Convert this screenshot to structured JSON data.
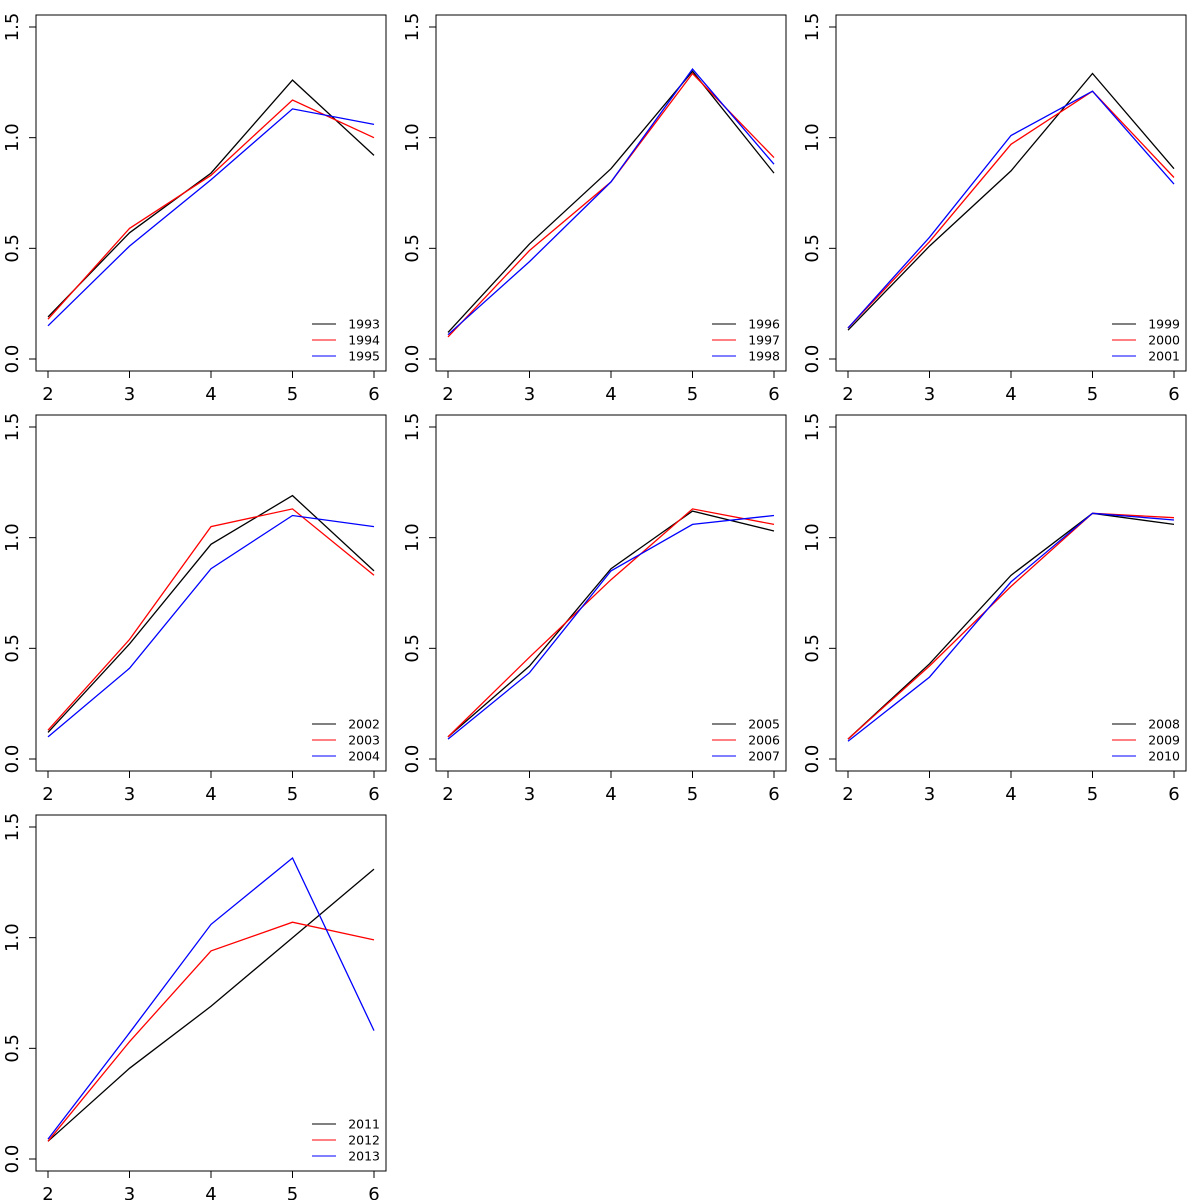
{
  "figure": {
    "layout": "3x3 grid of line charts",
    "background": "#ffffff"
  },
  "colors": {
    "axis": "#000000",
    "series": [
      "#000000",
      "#ff0000",
      "#0000ff"
    ]
  },
  "chart_data": [
    {
      "type": "line",
      "title": "",
      "xlabel": "",
      "ylabel": "",
      "xlim": [
        2,
        6
      ],
      "ylim": [
        0,
        1.5
      ],
      "x_ticks": [
        "2",
        "3",
        "4",
        "5",
        "6"
      ],
      "y_ticks": [
        "0.0",
        "0.5",
        "1.0",
        "1.5"
      ],
      "x": [
        2,
        3,
        4,
        5,
        6
      ],
      "grid": false,
      "legend_position": "bottom-right",
      "series": [
        {
          "name": "1993",
          "color": "#000000",
          "values": [
            0.19,
            0.57,
            0.84,
            1.26,
            0.92
          ]
        },
        {
          "name": "1994",
          "color": "#ff0000",
          "values": [
            0.18,
            0.59,
            0.83,
            1.17,
            1.0
          ]
        },
        {
          "name": "1995",
          "color": "#0000ff",
          "values": [
            0.15,
            0.51,
            0.81,
            1.13,
            1.06
          ]
        }
      ]
    },
    {
      "type": "line",
      "title": "",
      "xlabel": "",
      "ylabel": "",
      "xlim": [
        2,
        6
      ],
      "ylim": [
        0,
        1.5
      ],
      "x_ticks": [
        "2",
        "3",
        "4",
        "5",
        "6"
      ],
      "y_ticks": [
        "0.0",
        "0.5",
        "1.0",
        "1.5"
      ],
      "x": [
        2,
        3,
        4,
        5,
        6
      ],
      "grid": false,
      "legend_position": "bottom-right",
      "series": [
        {
          "name": "1996",
          "color": "#000000",
          "values": [
            0.12,
            0.52,
            0.86,
            1.3,
            0.84
          ]
        },
        {
          "name": "1997",
          "color": "#ff0000",
          "values": [
            0.1,
            0.49,
            0.8,
            1.29,
            0.91
          ]
        },
        {
          "name": "1998",
          "color": "#0000ff",
          "values": [
            0.11,
            0.44,
            0.8,
            1.31,
            0.88
          ]
        }
      ]
    },
    {
      "type": "line",
      "title": "",
      "xlabel": "",
      "ylabel": "",
      "xlim": [
        2,
        6
      ],
      "ylim": [
        0,
        1.5
      ],
      "x_ticks": [
        "2",
        "3",
        "4",
        "5",
        "6"
      ],
      "y_ticks": [
        "0.0",
        "0.5",
        "1.0",
        "1.5"
      ],
      "x": [
        2,
        3,
        4,
        5,
        6
      ],
      "grid": false,
      "legend_position": "bottom-right",
      "series": [
        {
          "name": "1999",
          "color": "#000000",
          "values": [
            0.13,
            0.51,
            0.85,
            1.29,
            0.86
          ]
        },
        {
          "name": "2000",
          "color": "#ff0000",
          "values": [
            0.14,
            0.53,
            0.97,
            1.21,
            0.82
          ]
        },
        {
          "name": "2001",
          "color": "#0000ff",
          "values": [
            0.14,
            0.55,
            1.01,
            1.21,
            0.79
          ]
        }
      ]
    },
    {
      "type": "line",
      "title": "",
      "xlabel": "",
      "ylabel": "",
      "xlim": [
        2,
        6
      ],
      "ylim": [
        0,
        1.5
      ],
      "x_ticks": [
        "2",
        "3",
        "4",
        "5",
        "6"
      ],
      "y_ticks": [
        "0.0",
        "0.5",
        "1.0",
        "1.5"
      ],
      "x": [
        2,
        3,
        4,
        5,
        6
      ],
      "grid": false,
      "legend_position": "bottom-right",
      "series": [
        {
          "name": "2002",
          "color": "#000000",
          "values": [
            0.12,
            0.52,
            0.97,
            1.19,
            0.85
          ]
        },
        {
          "name": "2003",
          "color": "#ff0000",
          "values": [
            0.13,
            0.54,
            1.05,
            1.13,
            0.83
          ]
        },
        {
          "name": "2004",
          "color": "#0000ff",
          "values": [
            0.1,
            0.41,
            0.86,
            1.1,
            1.05
          ]
        }
      ]
    },
    {
      "type": "line",
      "title": "",
      "xlabel": "",
      "ylabel": "",
      "xlim": [
        2,
        6
      ],
      "ylim": [
        0,
        1.5
      ],
      "x_ticks": [
        "2",
        "3",
        "4",
        "5",
        "6"
      ],
      "y_ticks": [
        "0.0",
        "0.5",
        "1.0",
        "1.5"
      ],
      "x": [
        2,
        3,
        4,
        5,
        6
      ],
      "grid": false,
      "legend_position": "bottom-right",
      "series": [
        {
          "name": "2005",
          "color": "#000000",
          "values": [
            0.1,
            0.42,
            0.86,
            1.12,
            1.03
          ]
        },
        {
          "name": "2006",
          "color": "#ff0000",
          "values": [
            0.1,
            0.46,
            0.81,
            1.13,
            1.06
          ]
        },
        {
          "name": "2007",
          "color": "#0000ff",
          "values": [
            0.09,
            0.39,
            0.85,
            1.06,
            1.1
          ]
        }
      ]
    },
    {
      "type": "line",
      "title": "",
      "xlabel": "",
      "ylabel": "",
      "xlim": [
        2,
        6
      ],
      "ylim": [
        0,
        1.5
      ],
      "x_ticks": [
        "2",
        "3",
        "4",
        "5",
        "6"
      ],
      "y_ticks": [
        "0.0",
        "0.5",
        "1.0",
        "1.5"
      ],
      "x": [
        2,
        3,
        4,
        5,
        6
      ],
      "grid": false,
      "legend_position": "bottom-right",
      "series": [
        {
          "name": "2008",
          "color": "#000000",
          "values": [
            0.09,
            0.43,
            0.83,
            1.11,
            1.06
          ]
        },
        {
          "name": "2009",
          "color": "#ff0000",
          "values": [
            0.09,
            0.42,
            0.78,
            1.11,
            1.09
          ]
        },
        {
          "name": "2010",
          "color": "#0000ff",
          "values": [
            0.08,
            0.37,
            0.8,
            1.11,
            1.08
          ]
        }
      ]
    },
    {
      "type": "line",
      "title": "",
      "xlabel": "",
      "ylabel": "",
      "xlim": [
        2,
        6
      ],
      "ylim": [
        0,
        1.5
      ],
      "x_ticks": [
        "2",
        "3",
        "4",
        "5",
        "6"
      ],
      "y_ticks": [
        "0.0",
        "0.5",
        "1.0",
        "1.5"
      ],
      "x": [
        2,
        3,
        4,
        5,
        6
      ],
      "grid": false,
      "legend_position": "bottom-right",
      "series": [
        {
          "name": "2011",
          "color": "#000000",
          "values": [
            0.08,
            0.41,
            0.69,
            1.0,
            1.31
          ]
        },
        {
          "name": "2012",
          "color": "#ff0000",
          "values": [
            0.08,
            0.53,
            0.94,
            1.07,
            0.99
          ]
        },
        {
          "name": "2013",
          "color": "#0000ff",
          "values": [
            0.09,
            0.57,
            1.06,
            1.36,
            0.58
          ]
        }
      ]
    }
  ]
}
